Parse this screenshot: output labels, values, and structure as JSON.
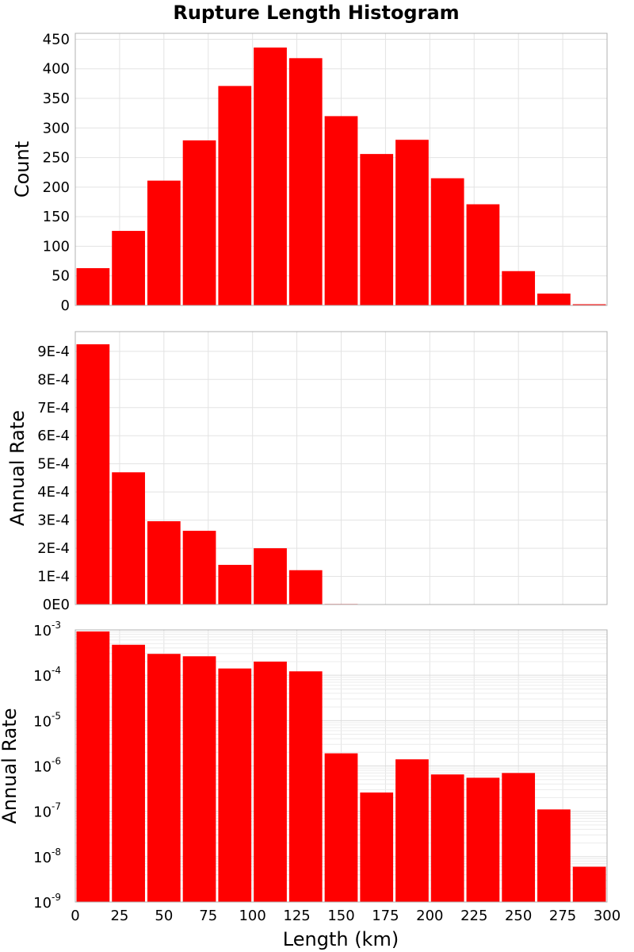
{
  "chart_data": {
    "type": "bar",
    "title": "Rupture Length Histogram",
    "xlabel": "Length (km)",
    "xlim": [
      0,
      300
    ],
    "x_ticks": [
      "0",
      "25",
      "50",
      "75",
      "100",
      "125",
      "150",
      "175",
      "200",
      "225",
      "250",
      "275",
      "300"
    ],
    "bin_width": 20,
    "bin_starts": [
      0,
      20,
      40,
      60,
      80,
      100,
      120,
      140,
      160,
      180,
      200,
      220,
      240,
      260,
      280
    ],
    "bar_color": "#ff0000",
    "grid": true,
    "panels": [
      {
        "ylabel": "Count",
        "scale": "linear",
        "ylim": [
          0,
          460
        ],
        "y_ticks": [
          "0",
          "50",
          "100",
          "150",
          "200",
          "250",
          "300",
          "350",
          "400",
          "450"
        ],
        "values": [
          63,
          126,
          211,
          279,
          371,
          436,
          418,
          320,
          256,
          280,
          215,
          171,
          58,
          20,
          2
        ]
      },
      {
        "ylabel": "Annual Rate",
        "scale": "linear",
        "ylim": [
          0,
          0.00097
        ],
        "y_ticks": [
          "0E0",
          "1E-4",
          "2E-4",
          "3E-4",
          "4E-4",
          "5E-4",
          "6E-4",
          "7E-4",
          "8E-4",
          "9E-4"
        ],
        "values": [
          0.000925,
          0.00047,
          0.000296,
          0.000262,
          0.000141,
          0.0002,
          0.000122,
          1.9e-06,
          2.6e-07,
          1.4e-06,
          6.5e-07,
          5.5e-07,
          7e-07,
          1.1e-07,
          6e-09
        ]
      },
      {
        "ylabel": "Annual Rate",
        "scale": "log",
        "ylim": [
          1e-09,
          0.001
        ],
        "y_ticks": [
          {
            "base": "10",
            "exp": "-3"
          },
          {
            "base": "10",
            "exp": "-4"
          },
          {
            "base": "10",
            "exp": "-5"
          },
          {
            "base": "10",
            "exp": "-6"
          },
          {
            "base": "10",
            "exp": "-7"
          },
          {
            "base": "10",
            "exp": "-8"
          },
          {
            "base": "10",
            "exp": "-9"
          }
        ],
        "values": [
          0.000925,
          0.00047,
          0.000296,
          0.000262,
          0.000141,
          0.0002,
          0.000122,
          1.9e-06,
          2.6e-07,
          1.4e-06,
          6.5e-07,
          5.5e-07,
          7e-07,
          1.1e-07,
          6e-09
        ]
      }
    ]
  }
}
